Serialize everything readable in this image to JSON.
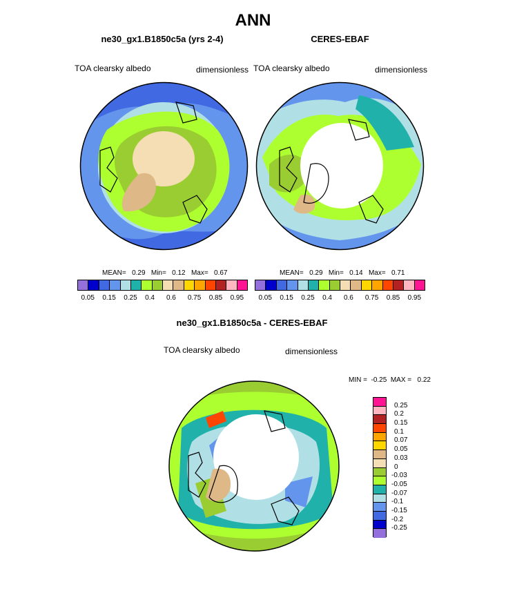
{
  "figure": {
    "title": "ANN"
  },
  "panels": [
    {
      "title": "ne30_gx1.B1850c5a (yrs 2-4)",
      "left_label": "TOA clearsky albedo",
      "right_label": "dimensionless",
      "stats": "MEAN=   0.29   Min=   0.12   Max=   0.67"
    },
    {
      "title": "CERES-EBAF",
      "left_label": "TOA clearsky albedo",
      "right_label": "dimensionless",
      "stats": "MEAN=   0.29   Min=   0.14   Max=   0.71"
    },
    {
      "title": "ne30_gx1.B1850c5a - CERES-EBAF",
      "left_label": "TOA clearsky albedo",
      "right_label": "dimensionless",
      "stats": "MIN =  -0.25  MAX =   0.22"
    }
  ],
  "colorbar_abs": {
    "colors": [
      "#9370db",
      "#0000cd",
      "#4169e1",
      "#6495ed",
      "#b0e0e6",
      "#20b2aa",
      "#adff2f",
      "#9acd32",
      "#f5deb3",
      "#deb887",
      "#ffd700",
      "#ffa500",
      "#ff4500",
      "#b22222",
      "#ffb6c1",
      "#ff1493"
    ],
    "tick_labels": [
      "0.05",
      "0.15",
      "0.25",
      "0.4",
      "0.6",
      "0.75",
      "0.85",
      "0.95"
    ]
  },
  "colorbar_diff": {
    "colors_top_to_bottom": [
      "#ff1493",
      "#ffb6c1",
      "#b22222",
      "#ff4500",
      "#ffa500",
      "#ffd700",
      "#deb887",
      "#f5deb3",
      "#9acd32",
      "#adff2f",
      "#20b2aa",
      "#b0e0e6",
      "#6495ed",
      "#4169e1",
      "#0000cd",
      "#9370db"
    ],
    "tick_labels_top_to_bottom": [
      "0.25",
      "0.2",
      "0.15",
      "0.1",
      "0.07",
      "0.05",
      "0.03",
      "0",
      "-0.03",
      "-0.05",
      "-0.07",
      "-0.1",
      "-0.15",
      "-0.2",
      "-0.25"
    ]
  },
  "chart_data": [
    {
      "type": "heatmap",
      "title": "ne30_gx1.B1850c5a (yrs 2-4)",
      "variable": "TOA clearsky albedo",
      "units": "dimensionless",
      "projection": "polar stereographic (Northern Hemisphere)",
      "mean": 0.29,
      "min": 0.12,
      "max": 0.67,
      "contour_levels": [
        0.05,
        0.1,
        0.15,
        0.2,
        0.25,
        0.3,
        0.4,
        0.5,
        0.6,
        0.7,
        0.75,
        0.8,
        0.85,
        0.9,
        0.95
      ]
    },
    {
      "type": "heatmap",
      "title": "CERES-EBAF",
      "variable": "TOA clearsky albedo",
      "units": "dimensionless",
      "projection": "polar stereographic (Northern Hemisphere)",
      "mean": 0.29,
      "min": 0.14,
      "max": 0.71,
      "contour_levels": [
        0.05,
        0.1,
        0.15,
        0.2,
        0.25,
        0.3,
        0.4,
        0.5,
        0.6,
        0.7,
        0.75,
        0.8,
        0.85,
        0.9,
        0.95
      ]
    },
    {
      "type": "heatmap",
      "title": "ne30_gx1.B1850c5a - CERES-EBAF",
      "variable": "TOA clearsky albedo",
      "units": "dimensionless",
      "projection": "polar stereographic (Northern Hemisphere)",
      "min": -0.25,
      "max": 0.22,
      "contour_levels": [
        -0.25,
        -0.2,
        -0.15,
        -0.1,
        -0.07,
        -0.05,
        -0.03,
        0,
        0.03,
        0.05,
        0.07,
        0.1,
        0.15,
        0.2,
        0.25
      ]
    }
  ]
}
